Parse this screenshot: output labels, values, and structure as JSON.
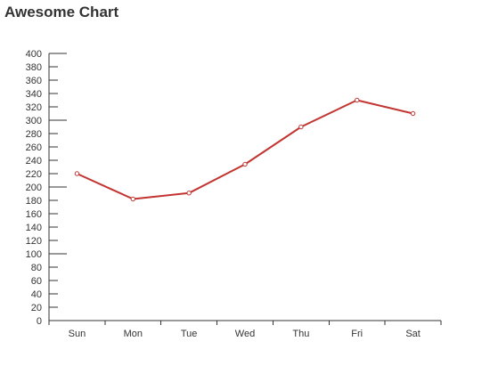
{
  "chart_data": {
    "type": "line",
    "title": "Awesome Chart",
    "xlabel": "",
    "ylabel": "",
    "categories": [
      "Sun",
      "Mon",
      "Tue",
      "Wed",
      "Thu",
      "Fri",
      "Sat"
    ],
    "series": [
      {
        "values": [
          220,
          182,
          191,
          234,
          290,
          330,
          310
        ]
      }
    ],
    "ylim": [
      0,
      400
    ],
    "ytick_step": 20,
    "yticks": [
      "0",
      "20",
      "40",
      "60",
      "80",
      "100",
      "120",
      "140",
      "160",
      "180",
      "200",
      "220",
      "240",
      "260",
      "280",
      "300",
      "320",
      "340",
      "360",
      "380",
      "400"
    ],
    "grid": false,
    "line_color": "#c23531",
    "marker_fill": "#ffffff"
  }
}
